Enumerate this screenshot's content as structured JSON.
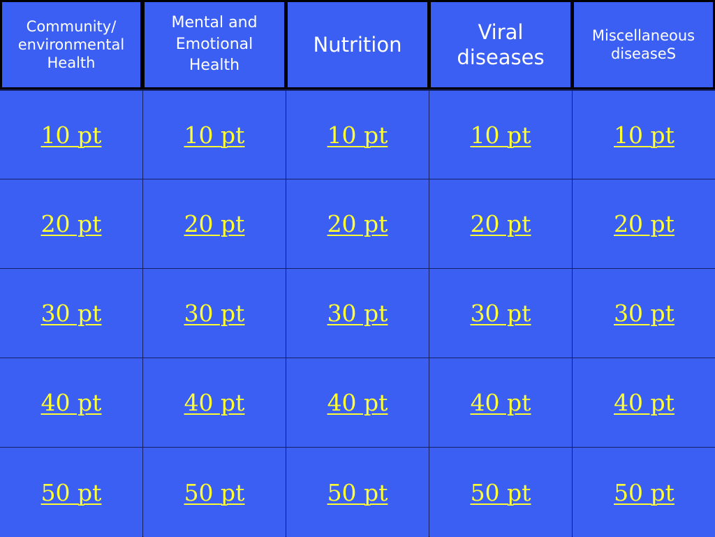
{
  "categories": [
    {
      "label": "Community/\nenvironmental\nHealth"
    },
    {
      "label": "Mental and\nEmotional\nHealth"
    },
    {
      "label": "Nutrition"
    },
    {
      "label": "Viral\ndiseases"
    },
    {
      "label": "Miscellaneous\ndiseaseS"
    }
  ],
  "rows": [
    {
      "label": "10 pt"
    },
    {
      "label": "20 pt"
    },
    {
      "label": "30 pt"
    },
    {
      "label": "40 pt"
    },
    {
      "label": "50 pt"
    }
  ],
  "colors": {
    "cell_bg": "#3a5ff2",
    "point_text": "#ffff33",
    "header_text": "#ffffff",
    "border": "#000000"
  }
}
